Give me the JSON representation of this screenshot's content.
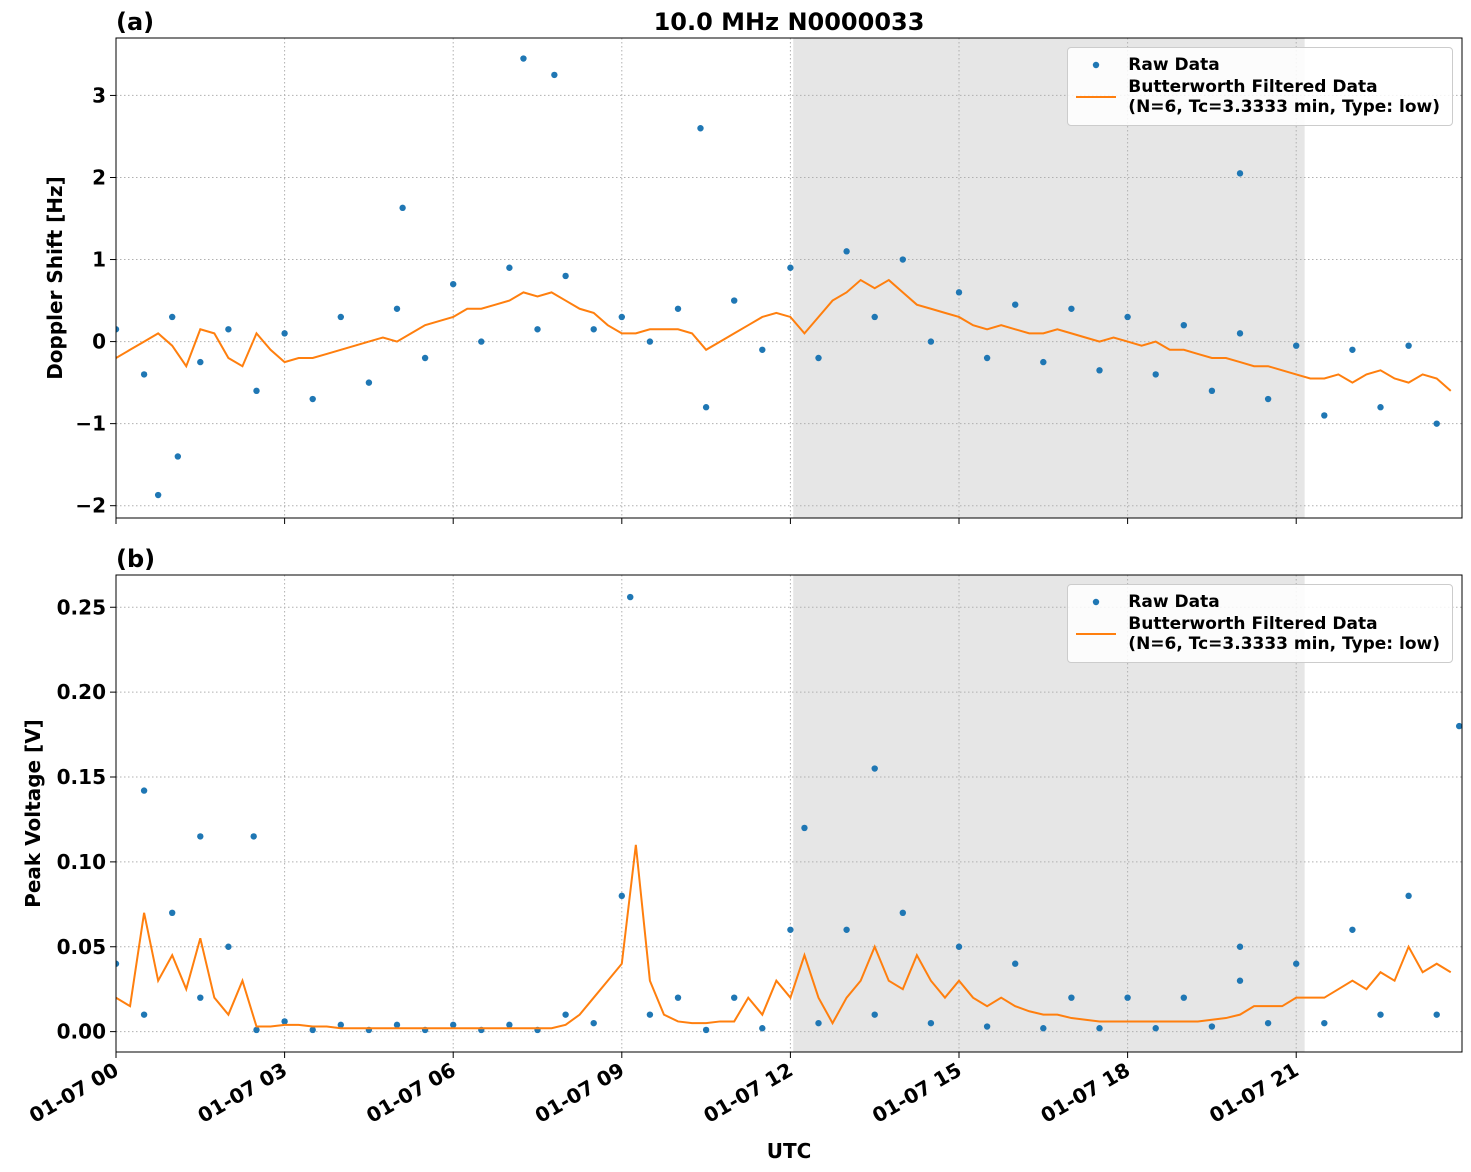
{
  "chart_data": [
    {
      "type": "line",
      "panel_label": "(a)",
      "title": "10.0 MHz N0000033",
      "ylabel": "Doppler Shift [Hz]",
      "xlim": [
        0,
        23.95
      ],
      "ylim": [
        -2.15,
        3.7
      ],
      "grid": true,
      "legend": "upper right",
      "shade": [
        12.05,
        21.15
      ],
      "xticks": [
        0,
        3,
        6,
        9,
        12,
        15,
        18,
        21
      ],
      "yticks": [
        {
          "value": -2,
          "label": "−2"
        },
        {
          "value": -1,
          "label": "−1"
        },
        0,
        1,
        2,
        3
      ],
      "series": [
        {
          "name": "Raw Data",
          "type": "scatter",
          "color": "#1f77b4",
          "x": [
            0,
            0.5,
            1,
            1.5,
            2,
            2.5,
            3,
            3.5,
            4,
            4.5,
            5,
            5.5,
            6,
            6.5,
            7,
            7.5,
            8,
            8.5,
            9,
            9.5,
            10,
            10.5,
            11,
            11.5,
            12,
            12.5,
            13,
            13.5,
            14,
            14.5,
            15,
            15.5,
            16,
            16.5,
            17,
            17.5,
            18,
            18.5,
            19,
            19.5,
            20,
            20.5,
            21,
            21.5,
            22,
            22.5,
            23,
            23.5,
            0.75,
            7.25,
            7.8,
            10.4,
            20,
            1.1,
            5.1
          ],
          "values": [
            0.15,
            -0.4,
            0.3,
            -0.25,
            0.15,
            -0.6,
            0.1,
            -0.7,
            0.3,
            -0.5,
            0.4,
            -0.2,
            0.7,
            0,
            0.9,
            0.15,
            0.8,
            0.15,
            0.3,
            0,
            0.4,
            -0.8,
            0.5,
            -0.1,
            0.9,
            -0.2,
            1.1,
            0.3,
            1,
            0,
            0.6,
            -0.2,
            0.45,
            -0.25,
            0.4,
            -0.35,
            0.3,
            -0.4,
            0.2,
            -0.6,
            0.1,
            -0.7,
            -0.05,
            -0.9,
            -0.1,
            -0.8,
            -0.05,
            -1,
            -1.87,
            3.45,
            3.25,
            2.6,
            2.05,
            -1.4,
            1.63
          ]
        },
        {
          "name": "Butterworth Filtered Data\n(N=6, Tc=3.3333 min, Type: low)",
          "type": "line",
          "color": "#ff7f0e",
          "x": [
            0,
            0.25,
            0.5,
            0.75,
            1,
            1.25,
            1.5,
            1.75,
            2,
            2.25,
            2.5,
            2.75,
            3,
            3.25,
            3.5,
            3.75,
            4,
            4.25,
            4.5,
            4.75,
            5,
            5.25,
            5.5,
            5.75,
            6,
            6.25,
            6.5,
            6.75,
            7,
            7.25,
            7.5,
            7.75,
            8,
            8.25,
            8.5,
            8.75,
            9,
            9.25,
            9.5,
            9.75,
            10,
            10.25,
            10.5,
            10.75,
            11,
            11.25,
            11.5,
            11.75,
            12,
            12.25,
            12.5,
            12.75,
            13,
            13.25,
            13.5,
            13.75,
            14,
            14.25,
            14.5,
            14.75,
            15,
            15.25,
            15.5,
            15.75,
            16,
            16.25,
            16.5,
            16.75,
            17,
            17.25,
            17.5,
            17.75,
            18,
            18.25,
            18.5,
            18.75,
            19,
            19.25,
            19.5,
            19.75,
            20,
            20.25,
            20.5,
            20.75,
            21,
            21.25,
            21.5,
            21.75,
            22,
            22.25,
            22.5,
            22.75,
            23,
            23.25,
            23.5,
            23.75
          ],
          "values": [
            -0.2,
            -0.1,
            0,
            0.1,
            -0.05,
            -0.3,
            0.15,
            0.1,
            -0.2,
            -0.3,
            0.1,
            -0.1,
            -0.25,
            -0.2,
            -0.2,
            -0.15,
            -0.1,
            -0.05,
            0,
            0.05,
            0,
            0.1,
            0.2,
            0.25,
            0.3,
            0.4,
            0.4,
            0.45,
            0.5,
            0.6,
            0.55,
            0.6,
            0.5,
            0.4,
            0.35,
            0.2,
            0.1,
            0.1,
            0.15,
            0.15,
            0.15,
            0.1,
            -0.1,
            0,
            0.1,
            0.2,
            0.3,
            0.35,
            0.3,
            0.1,
            0.3,
            0.5,
            0.6,
            0.75,
            0.65,
            0.75,
            0.6,
            0.45,
            0.4,
            0.35,
            0.3,
            0.2,
            0.15,
            0.2,
            0.15,
            0.1,
            0.1,
            0.15,
            0.1,
            0.05,
            0,
            0.05,
            0,
            -0.05,
            0,
            -0.1,
            -0.1,
            -0.15,
            -0.2,
            -0.2,
            -0.25,
            -0.3,
            -0.3,
            -0.35,
            -0.4,
            -0.45,
            -0.45,
            -0.4,
            -0.5,
            -0.4,
            -0.35,
            -0.45,
            -0.5,
            -0.4,
            -0.45,
            -0.6
          ]
        }
      ]
    },
    {
      "type": "line",
      "panel_label": "(b)",
      "ylabel": "Peak Voltage [V]",
      "xlabel": "UTC",
      "xlim": [
        0,
        23.95
      ],
      "ylim": [
        -0.012,
        0.269
      ],
      "grid": true,
      "legend": "upper right",
      "shade": [
        12.05,
        21.15
      ],
      "xticks": [
        {
          "value": 0,
          "label": "01-07 00"
        },
        {
          "value": 3,
          "label": "01-07 03"
        },
        {
          "value": 6,
          "label": "01-07 06"
        },
        {
          "value": 9,
          "label": "01-07 09"
        },
        {
          "value": 12,
          "label": "01-07 12"
        },
        {
          "value": 15,
          "label": "01-07 15"
        },
        {
          "value": 18,
          "label": "01-07 18"
        },
        {
          "value": 21,
          "label": "01-07 21"
        }
      ],
      "yticks": [
        {
          "value": 0,
          "label": "0.00"
        },
        0.05,
        {
          "value": 0.1,
          "label": "0.10"
        },
        0.15,
        {
          "value": 0.2,
          "label": "0.20"
        },
        0.25
      ],
      "series": [
        {
          "name": "Raw Data",
          "type": "scatter",
          "color": "#1f77b4",
          "x": [
            0,
            0.5,
            1,
            1.5,
            2,
            2.5,
            3,
            3.5,
            4,
            4.5,
            5,
            5.5,
            6,
            6.5,
            7,
            7.5,
            8,
            8.5,
            9,
            9.5,
            10,
            10.5,
            11,
            11.5,
            12,
            12.5,
            13,
            13.5,
            14,
            14.5,
            15,
            15.5,
            16,
            16.5,
            17,
            17.5,
            18,
            18.5,
            19,
            19.5,
            20,
            20.5,
            21,
            21.5,
            22,
            22.5,
            23,
            23.5,
            0.5,
            1.5,
            2.45,
            9.15,
            12.25,
            13.5,
            20,
            23.9
          ],
          "values": [
            0.04,
            0.01,
            0.07,
            0.02,
            0.05,
            0.001,
            0.006,
            0.001,
            0.004,
            0.001,
            0.004,
            0.001,
            0.004,
            0.001,
            0.004,
            0.001,
            0.01,
            0.005,
            0.08,
            0.01,
            0.02,
            0.001,
            0.02,
            0.002,
            0.06,
            0.005,
            0.06,
            0.01,
            0.07,
            0.005,
            0.05,
            0.003,
            0.04,
            0.002,
            0.02,
            0.002,
            0.02,
            0.002,
            0.02,
            0.003,
            0.03,
            0.005,
            0.04,
            0.005,
            0.06,
            0.01,
            0.08,
            0.01,
            0.142,
            0.115,
            0.115,
            0.256,
            0.12,
            0.155,
            0.05,
            0.18
          ]
        },
        {
          "name": "Butterworth Filtered Data\n(N=6, Tc=3.3333 min, Type: low)",
          "type": "line",
          "color": "#ff7f0e",
          "x": [
            0,
            0.25,
            0.5,
            0.75,
            1,
            1.25,
            1.5,
            1.75,
            2,
            2.25,
            2.5,
            2.75,
            3,
            3.25,
            3.5,
            3.75,
            4,
            4.25,
            4.5,
            4.75,
            5,
            5.25,
            5.5,
            5.75,
            6,
            6.25,
            6.5,
            6.75,
            7,
            7.25,
            7.5,
            7.75,
            8,
            8.25,
            8.5,
            8.75,
            9,
            9.25,
            9.5,
            9.75,
            10,
            10.25,
            10.5,
            10.75,
            11,
            11.25,
            11.5,
            11.75,
            12,
            12.25,
            12.5,
            12.75,
            13,
            13.25,
            13.5,
            13.75,
            14,
            14.25,
            14.5,
            14.75,
            15,
            15.25,
            15.5,
            15.75,
            16,
            16.25,
            16.5,
            16.75,
            17,
            17.25,
            17.5,
            17.75,
            18,
            18.25,
            18.5,
            18.75,
            19,
            19.25,
            19.5,
            19.75,
            20,
            20.25,
            20.5,
            20.75,
            21,
            21.25,
            21.5,
            21.75,
            22,
            22.25,
            22.5,
            22.75,
            23,
            23.25,
            23.5,
            23.75
          ],
          "values": [
            0.02,
            0.015,
            0.07,
            0.03,
            0.045,
            0.025,
            0.055,
            0.02,
            0.01,
            0.03,
            0.003,
            0.003,
            0.004,
            0.004,
            0.003,
            0.003,
            0.002,
            0.002,
            0.002,
            0.002,
            0.002,
            0.002,
            0.002,
            0.002,
            0.002,
            0.002,
            0.002,
            0.002,
            0.002,
            0.002,
            0.002,
            0.002,
            0.004,
            0.01,
            0.02,
            0.03,
            0.04,
            0.11,
            0.03,
            0.01,
            0.006,
            0.005,
            0.005,
            0.006,
            0.006,
            0.02,
            0.01,
            0.03,
            0.02,
            0.045,
            0.02,
            0.005,
            0.02,
            0.03,
            0.05,
            0.03,
            0.025,
            0.045,
            0.03,
            0.02,
            0.03,
            0.02,
            0.015,
            0.02,
            0.015,
            0.012,
            0.01,
            0.01,
            0.008,
            0.007,
            0.006,
            0.006,
            0.006,
            0.006,
            0.006,
            0.006,
            0.006,
            0.006,
            0.007,
            0.008,
            0.01,
            0.015,
            0.015,
            0.015,
            0.02,
            0.02,
            0.02,
            0.025,
            0.03,
            0.025,
            0.035,
            0.03,
            0.05,
            0.035,
            0.04,
            0.035
          ]
        }
      ]
    }
  ]
}
